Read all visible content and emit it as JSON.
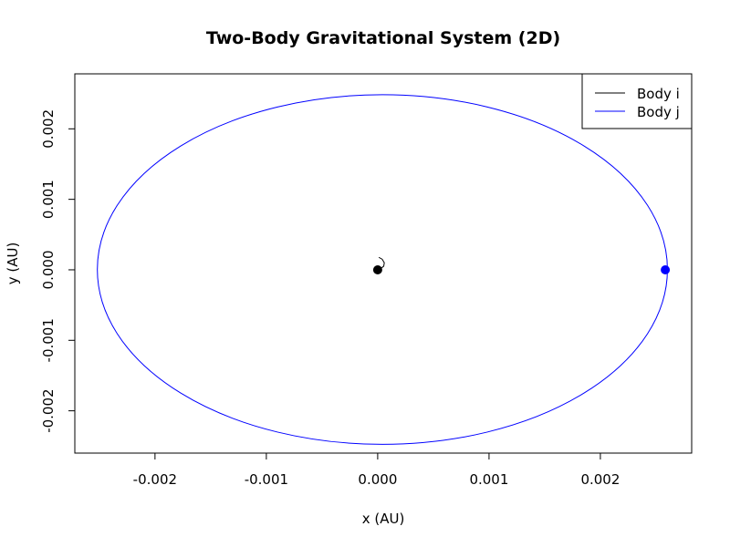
{
  "chart_data": {
    "type": "line",
    "title": "Two-Body Gravitational System (2D)",
    "xlabel": "x (AU)",
    "ylabel": "y (AU)",
    "xlim": [
      -0.00272,
      0.00282
    ],
    "ylim": [
      -0.0026,
      0.00278
    ],
    "x_ticks": [
      -0.002,
      -0.001,
      0.0,
      0.001,
      0.002
    ],
    "x_tick_labels": [
      "-0.002",
      "-0.001",
      "0.000",
      "0.001",
      "0.002"
    ],
    "y_ticks": [
      -0.002,
      -0.001,
      0.0,
      0.001,
      0.002
    ],
    "y_tick_labels": [
      "-0.002",
      "-0.001",
      "0.000",
      "0.001",
      "0.002"
    ],
    "grid": false,
    "legend_position": "top-right",
    "series": [
      {
        "name": "Body i",
        "color": "#000000",
        "path": [
          [
            0.0,
            0.0
          ],
          [
            2.72e-05,
            1.7e-05
          ],
          [
            5.44e-05,
            5.22e-05
          ],
          [
            5.95e-05,
            9.97e-05
          ],
          [
            4.05e-05,
            0.0001503
          ],
          [
            1.02e-05,
            0.0001773
          ]
        ],
        "final_position": [
          0.0,
          -6e-07
        ]
      },
      {
        "name": "Body j",
        "color": "#0000ff",
        "ellipse": {
          "center": [
            4.22e-05,
            4.3e-06
          ],
          "semi_axis_x": 0.00256,
          "semi_axis_y": 0.00248
        },
        "final_position": [
          0.002583,
          -6e-07
        ]
      }
    ]
  }
}
